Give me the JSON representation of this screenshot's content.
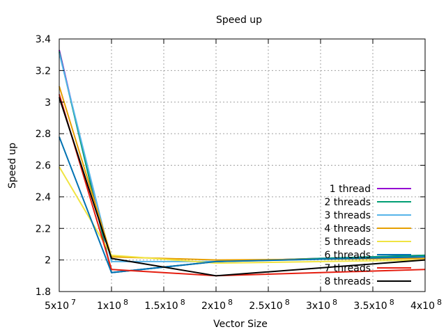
{
  "chart_data": {
    "type": "line",
    "title": "Speed up",
    "xlabel": "Vector Size",
    "ylabel": "Speed up",
    "xlim": [
      50000000,
      400000000
    ],
    "ylim": [
      1.8,
      3.4
    ],
    "grid": true,
    "legend_position": "bottom-right",
    "x_ticks": [
      {
        "value": 50000000,
        "mant": "5x10",
        "exp": "7"
      },
      {
        "value": 100000000,
        "mant": "1x10",
        "exp": "8"
      },
      {
        "value": 150000000,
        "mant": "1.5x10",
        "exp": "8"
      },
      {
        "value": 200000000,
        "mant": "2x10",
        "exp": "8"
      },
      {
        "value": 250000000,
        "mant": "2.5x10",
        "exp": "8"
      },
      {
        "value": 300000000,
        "mant": "3x10",
        "exp": "8"
      },
      {
        "value": 350000000,
        "mant": "3.5x10",
        "exp": "8"
      },
      {
        "value": 400000000,
        "mant": "4x10",
        "exp": "8"
      }
    ],
    "y_ticks": [
      {
        "value": 1.8,
        "label": "1.8"
      },
      {
        "value": 2.0,
        "label": "2"
      },
      {
        "value": 2.2,
        "label": "2.2"
      },
      {
        "value": 2.4,
        "label": "2.4"
      },
      {
        "value": 2.6,
        "label": "2.6"
      },
      {
        "value": 2.8,
        "label": "2.8"
      },
      {
        "value": 3.0,
        "label": "3"
      },
      {
        "value": 3.2,
        "label": "3.2"
      },
      {
        "value": 3.4,
        "label": "3.4"
      }
    ],
    "x": [
      50000000,
      100000000,
      200000000,
      400000000
    ],
    "series": [
      {
        "name": "1 thread",
        "color": "#9400d3",
        "values": [
          3.33,
          1.92,
          1.99,
          2.03
        ]
      },
      {
        "name": "2 threads",
        "color": "#009e73",
        "values": [
          3.32,
          1.92,
          1.99,
          2.03
        ]
      },
      {
        "name": "3 threads",
        "color": "#56b4e9",
        "values": [
          3.31,
          1.99,
          1.99,
          2.02
        ]
      },
      {
        "name": "4 threads",
        "color": "#e69f00",
        "values": [
          3.1,
          2.02,
          2.0,
          2.01
        ]
      },
      {
        "name": "5 threads",
        "color": "#f0e442",
        "values": [
          2.59,
          2.03,
          1.98,
          2.0
        ]
      },
      {
        "name": "6 threads",
        "color": "#0072b2",
        "values": [
          2.78,
          1.92,
          1.99,
          2.02
        ]
      },
      {
        "name": "7 threads",
        "color": "#e51e10",
        "values": [
          3.05,
          1.94,
          1.9,
          1.94
        ]
      },
      {
        "name": "8 threads",
        "color": "#000000",
        "values": [
          3.03,
          2.01,
          1.9,
          2.0
        ]
      }
    ]
  }
}
